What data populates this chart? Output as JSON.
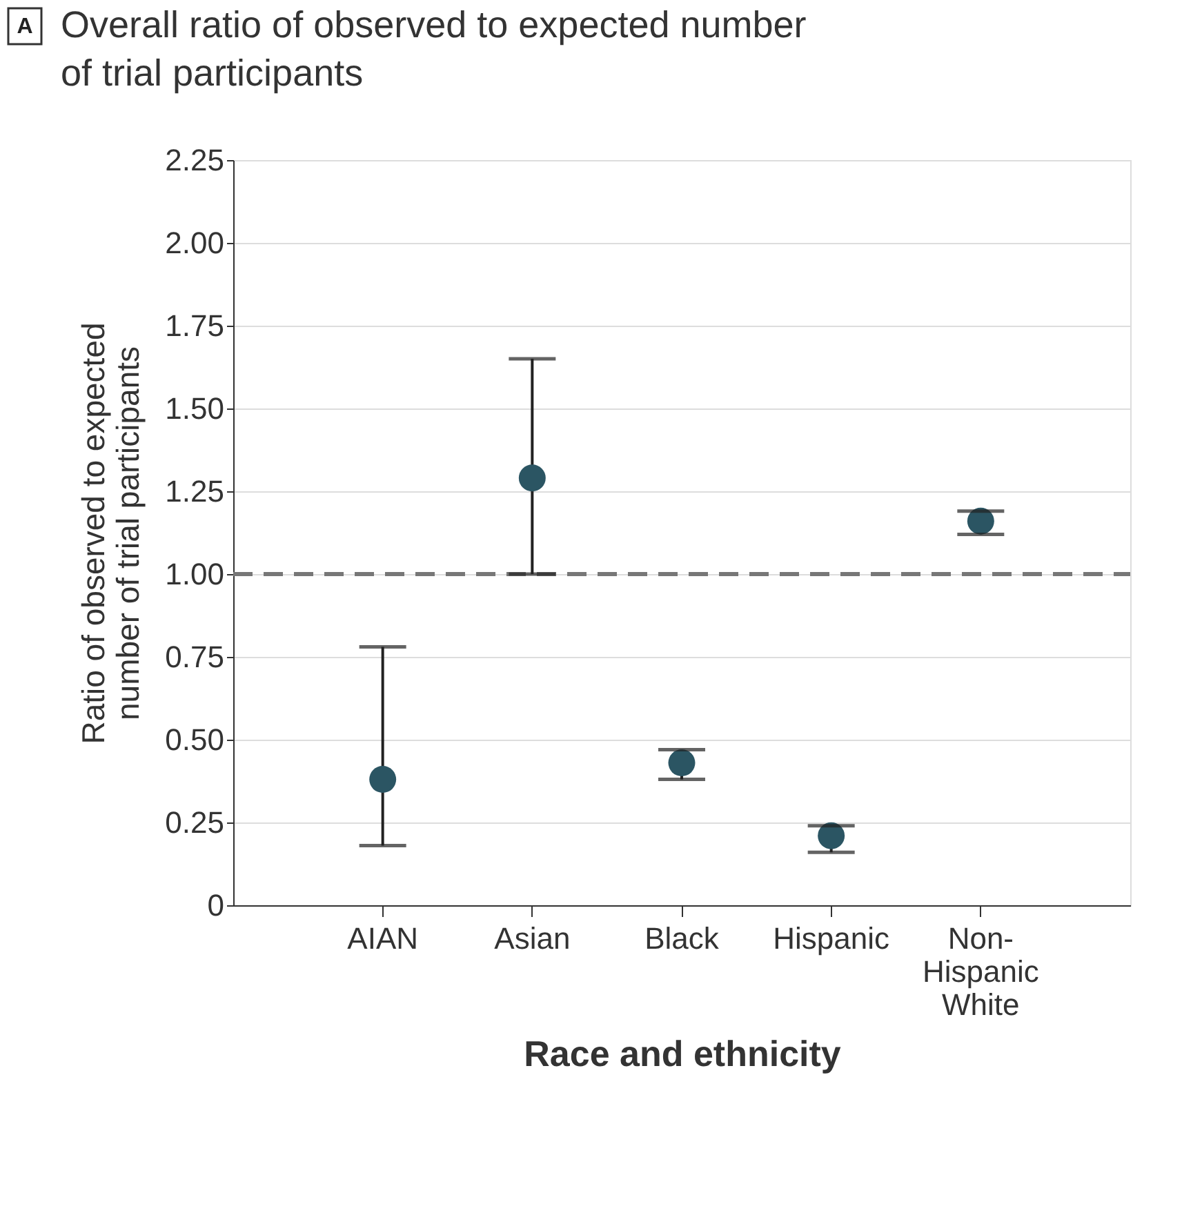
{
  "chart_data": {
    "type": "scatter",
    "title": "Overall ratio of observed to expected number of trial participants",
    "annotations": [
      "A"
    ],
    "xlabel": "Race and ethnicity",
    "ylabel": "Ratio of observed to expected number of trial participants",
    "categories": [
      "AIAN",
      "Asian",
      "Black",
      "Hispanic",
      "Non-Hispanic White"
    ],
    "series": [
      {
        "color": "#2b5563",
        "values": [
          0.38,
          1.29,
          0.43,
          0.21,
          1.16
        ],
        "errors": [
          [
            0.18,
            0.78
          ],
          [
            1.0,
            1.65
          ],
          [
            0.38,
            0.47
          ],
          [
            0.16,
            0.24
          ],
          [
            1.12,
            1.19
          ]
        ]
      }
    ],
    "ylim": [
      0,
      2.25
    ],
    "yticks": [
      {
        "value": 0,
        "label": "0"
      },
      {
        "value": 0.25,
        "label": "0.25"
      },
      {
        "value": 0.5,
        "label": "0.50"
      },
      {
        "value": 0.75,
        "label": "0.75"
      },
      {
        "value": 1.0,
        "label": "1.00"
      },
      {
        "value": 1.25,
        "label": "1.25"
      },
      {
        "value": 1.5,
        "label": "1.50"
      },
      {
        "value": 1.75,
        "label": "1.75"
      },
      {
        "value": 2.0,
        "label": "2.00"
      },
      {
        "value": 2.25,
        "label": "2.25"
      }
    ],
    "ref_lines": [
      {
        "axis": "y",
        "value": 1.0,
        "color": "#777777",
        "line_style": "dashed"
      }
    ],
    "grid": "y",
    "marker": "circle"
  }
}
